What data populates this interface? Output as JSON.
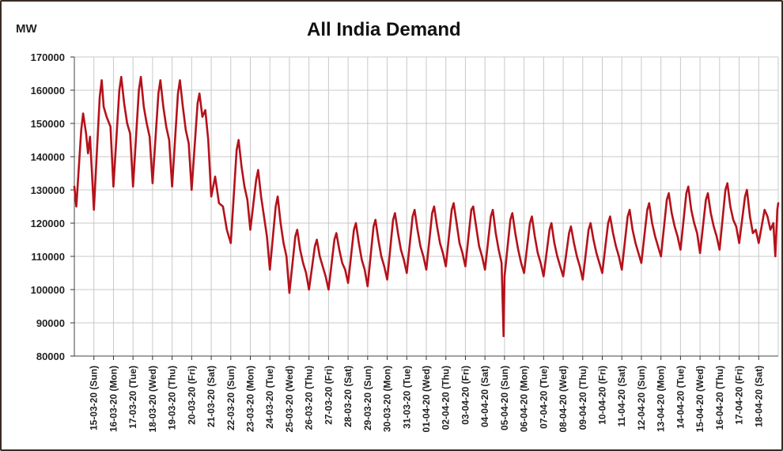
{
  "chart_data": {
    "type": "line",
    "title": "All India Demand",
    "ylabel": "MW",
    "xlabel": "",
    "ylim": [
      80000,
      170000
    ],
    "yticks": [
      80000,
      90000,
      100000,
      110000,
      120000,
      130000,
      140000,
      150000,
      160000,
      170000
    ],
    "grid": true,
    "line_color": "#b5121b",
    "categories": [
      "15-03-20 (Sun)",
      "16-03-20 (Mon)",
      "17-03-20 (Tue)",
      "18-03-20 (Wed)",
      "19-03-20 (Thu)",
      "20-03-20 (Fri)",
      "21-03-20 (Sat)",
      "22-03-20 (Sun)",
      "23-03-20 (Mon)",
      "24-03-20 (Tue)",
      "25-03-20 (Wed)",
      "26-03-20 (Thu)",
      "27-03-20 (Fri)",
      "28-03-20 (Sat)",
      "29-03-20 (Sun)",
      "30-03-20 (Mon)",
      "31-03-20 (Tue)",
      "01-04-20 (Wed)",
      "02-04-20 (Thu)",
      "03-04-20 (Fri)",
      "04-04-20 (Sat)",
      "05-04-20 (Sun)",
      "06-04-20 (Mon)",
      "07-04-20 (Tue)",
      "08-04-20 (Wed)",
      "09-04-20 (Thu)",
      "10-04-20 (Fri)",
      "11-04-20 (Sat)",
      "12-04-20 (Sun)",
      "13-04-20 (Mon)",
      "14-04-20 (Tue)",
      "15-04-20 (Wed)",
      "16-04-20 (Thu)",
      "17-04-20 (Fri)",
      "18-04-20 (Sat)"
    ],
    "series": [
      {
        "values": [
          [
            0,
            131000
          ],
          [
            0.1,
            125000
          ],
          [
            0.35,
            148000
          ],
          [
            0.45,
            153000
          ],
          [
            0.6,
            147000
          ],
          [
            0.7,
            141000
          ],
          [
            0.8,
            146000
          ],
          [
            0.9,
            135000
          ],
          [
            1.0,
            124000
          ],
          [
            1.3,
            158000
          ],
          [
            1.4,
            163000
          ],
          [
            1.5,
            155000
          ],
          [
            1.65,
            152000
          ],
          [
            1.85,
            149000
          ],
          [
            2.0,
            131000
          ],
          [
            2.3,
            160000
          ],
          [
            2.4,
            164000
          ],
          [
            2.55,
            156000
          ],
          [
            2.7,
            150000
          ],
          [
            2.85,
            147000
          ],
          [
            3.0,
            131000
          ],
          [
            3.3,
            160000
          ],
          [
            3.4,
            164000
          ],
          [
            3.55,
            155000
          ],
          [
            3.7,
            150000
          ],
          [
            3.85,
            146000
          ],
          [
            4.0,
            132000
          ],
          [
            4.3,
            159000
          ],
          [
            4.4,
            163000
          ],
          [
            4.55,
            155000
          ],
          [
            4.7,
            149000
          ],
          [
            4.85,
            145000
          ],
          [
            5.0,
            131000
          ],
          [
            5.3,
            159000
          ],
          [
            5.4,
            163000
          ],
          [
            5.55,
            155000
          ],
          [
            5.7,
            148000
          ],
          [
            5.85,
            144000
          ],
          [
            6.0,
            130000
          ],
          [
            6.3,
            156000
          ],
          [
            6.4,
            159000
          ],
          [
            6.55,
            152000
          ],
          [
            6.7,
            154000
          ],
          [
            6.85,
            145000
          ],
          [
            7.0,
            128000
          ],
          [
            7.2,
            134000
          ],
          [
            7.4,
            126000
          ],
          [
            7.6,
            125000
          ],
          [
            7.8,
            118000
          ],
          [
            8.0,
            114000
          ],
          [
            8.3,
            142000
          ],
          [
            8.4,
            145000
          ],
          [
            8.55,
            137000
          ],
          [
            8.7,
            131000
          ],
          [
            8.85,
            127000
          ],
          [
            9.0,
            118000
          ],
          [
            9.3,
            133000
          ],
          [
            9.4,
            136000
          ],
          [
            9.55,
            128000
          ],
          [
            9.7,
            122000
          ],
          [
            9.85,
            116000
          ],
          [
            10.0,
            106000
          ],
          [
            10.3,
            125000
          ],
          [
            10.4,
            128000
          ],
          [
            10.55,
            120000
          ],
          [
            10.7,
            114000
          ],
          [
            10.85,
            110000
          ],
          [
            11.0,
            99000
          ],
          [
            11.3,
            116000
          ],
          [
            11.4,
            118000
          ],
          [
            11.55,
            112000
          ],
          [
            11.7,
            108000
          ],
          [
            11.85,
            105000
          ],
          [
            12.0,
            100000
          ],
          [
            12.3,
            113000
          ],
          [
            12.4,
            115000
          ],
          [
            12.55,
            110000
          ],
          [
            12.7,
            107000
          ],
          [
            12.85,
            104000
          ],
          [
            13.0,
            100000
          ],
          [
            13.3,
            115000
          ],
          [
            13.4,
            117000
          ],
          [
            13.55,
            112000
          ],
          [
            13.7,
            108000
          ],
          [
            13.85,
            106000
          ],
          [
            14.0,
            102000
          ],
          [
            14.3,
            118000
          ],
          [
            14.4,
            120000
          ],
          [
            14.55,
            114000
          ],
          [
            14.7,
            109000
          ],
          [
            14.85,
            106000
          ],
          [
            15.0,
            101000
          ],
          [
            15.3,
            119000
          ],
          [
            15.4,
            121000
          ],
          [
            15.55,
            115000
          ],
          [
            15.7,
            110000
          ],
          [
            15.85,
            107000
          ],
          [
            16.0,
            103000
          ],
          [
            16.3,
            121000
          ],
          [
            16.4,
            123000
          ],
          [
            16.55,
            117000
          ],
          [
            16.7,
            112000
          ],
          [
            16.85,
            109000
          ],
          [
            17.0,
            105000
          ],
          [
            17.3,
            122000
          ],
          [
            17.4,
            124000
          ],
          [
            17.55,
            118000
          ],
          [
            17.7,
            113000
          ],
          [
            17.85,
            110000
          ],
          [
            18.0,
            106000
          ],
          [
            18.3,
            123000
          ],
          [
            18.4,
            125000
          ],
          [
            18.55,
            119000
          ],
          [
            18.7,
            114000
          ],
          [
            18.85,
            111000
          ],
          [
            19.0,
            107000
          ],
          [
            19.3,
            124000
          ],
          [
            19.4,
            126000
          ],
          [
            19.55,
            120000
          ],
          [
            19.7,
            114000
          ],
          [
            19.85,
            111000
          ],
          [
            20.0,
            107000
          ],
          [
            20.3,
            124000
          ],
          [
            20.4,
            125000
          ],
          [
            20.55,
            119000
          ],
          [
            20.7,
            113000
          ],
          [
            20.85,
            110000
          ],
          [
            21.0,
            106000
          ],
          [
            21.3,
            122000
          ],
          [
            21.4,
            124000
          ],
          [
            21.55,
            117000
          ],
          [
            21.7,
            112000
          ],
          [
            21.85,
            108000
          ],
          [
            21.95,
            86000
          ],
          [
            22.0,
            104000
          ],
          [
            22.3,
            121000
          ],
          [
            22.4,
            123000
          ],
          [
            22.55,
            117000
          ],
          [
            22.7,
            112000
          ],
          [
            22.85,
            108000
          ],
          [
            23.0,
            105000
          ],
          [
            23.3,
            120000
          ],
          [
            23.4,
            122000
          ],
          [
            23.55,
            116000
          ],
          [
            23.7,
            111000
          ],
          [
            23.85,
            108000
          ],
          [
            24.0,
            104000
          ],
          [
            24.3,
            118000
          ],
          [
            24.4,
            120000
          ],
          [
            24.55,
            114000
          ],
          [
            24.7,
            110000
          ],
          [
            24.85,
            107000
          ],
          [
            25.0,
            104000
          ],
          [
            25.3,
            117000
          ],
          [
            25.4,
            119000
          ],
          [
            25.55,
            114000
          ],
          [
            25.7,
            110000
          ],
          [
            25.85,
            107000
          ],
          [
            26.0,
            103000
          ],
          [
            26.3,
            118000
          ],
          [
            26.4,
            120000
          ],
          [
            26.55,
            115000
          ],
          [
            26.7,
            111000
          ],
          [
            26.85,
            108000
          ],
          [
            27.0,
            105000
          ],
          [
            27.3,
            120000
          ],
          [
            27.4,
            122000
          ],
          [
            27.55,
            117000
          ],
          [
            27.7,
            113000
          ],
          [
            27.85,
            110000
          ],
          [
            28.0,
            106000
          ],
          [
            28.3,
            122000
          ],
          [
            28.4,
            124000
          ],
          [
            28.55,
            118000
          ],
          [
            28.7,
            114000
          ],
          [
            28.85,
            111000
          ],
          [
            29.0,
            108000
          ],
          [
            29.3,
            124000
          ],
          [
            29.4,
            126000
          ],
          [
            29.55,
            120000
          ],
          [
            29.7,
            116000
          ],
          [
            29.85,
            113000
          ],
          [
            30.0,
            110000
          ],
          [
            30.3,
            127000
          ],
          [
            30.4,
            129000
          ],
          [
            30.55,
            123000
          ],
          [
            30.7,
            119000
          ],
          [
            30.85,
            116000
          ],
          [
            31.0,
            112000
          ],
          [
            31.3,
            129000
          ],
          [
            31.4,
            131000
          ],
          [
            31.55,
            124000
          ],
          [
            31.7,
            120000
          ],
          [
            31.85,
            117000
          ],
          [
            32.0,
            111000
          ],
          [
            32.3,
            127000
          ],
          [
            32.4,
            129000
          ],
          [
            32.55,
            123000
          ],
          [
            32.7,
            119000
          ],
          [
            32.85,
            116000
          ],
          [
            33.0,
            112000
          ],
          [
            33.3,
            130000
          ],
          [
            33.4,
            132000
          ],
          [
            33.55,
            125000
          ],
          [
            33.7,
            121000
          ],
          [
            33.85,
            119000
          ],
          [
            34.0,
            114000
          ],
          [
            34.3,
            128000
          ],
          [
            34.4,
            130000
          ],
          [
            34.55,
            122000
          ],
          [
            34.7,
            117000
          ],
          [
            34.85,
            118000
          ],
          [
            35.0,
            114000
          ],
          [
            35.3,
            124000
          ],
          [
            35.45,
            122000
          ],
          [
            35.6,
            118000
          ],
          [
            35.75,
            120000
          ],
          [
            35.85,
            110000
          ],
          [
            35.95,
            124000
          ],
          [
            36.0,
            126000
          ]
        ]
      }
    ]
  }
}
